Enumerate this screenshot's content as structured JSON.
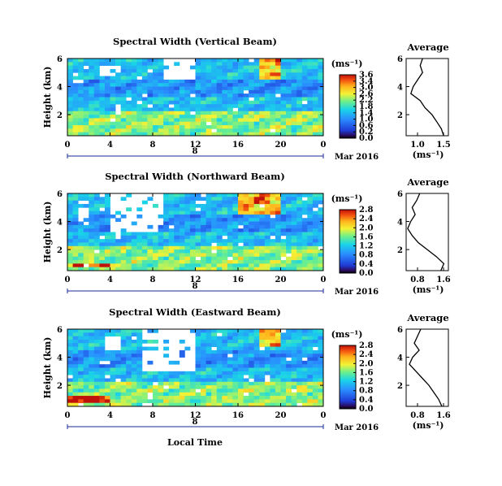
{
  "figure": {
    "xlabel": "Local Time",
    "date_marker": "8",
    "date_label": "Mar 2016"
  },
  "panels": [
    {
      "key": "vertical",
      "title": "Spectral Width (Vertical Beam)",
      "ylabel": "Height (km)",
      "x_ticks": [
        "0",
        "4",
        "8",
        "12",
        "16",
        "20",
        "0"
      ],
      "y_ticks": [
        "6",
        "4",
        "2"
      ],
      "colorbar_unit": "(ms⁻¹)",
      "colorbar_ticks": [
        "3.6",
        "3.4",
        "3.0",
        "2.6",
        "2.2",
        "1.8",
        "1.4",
        "1.0",
        "0.6",
        "0.2",
        "0.0"
      ],
      "avg_title": "Average",
      "avg_xlabel": "(ms⁻¹)",
      "avg_xticks": [
        "1.0",
        "1.5"
      ],
      "avg_yticks": [
        "6",
        "4",
        "2"
      ]
    },
    {
      "key": "northward",
      "title": "Spectral Width (Northward Beam)",
      "ylabel": "Height (km)",
      "x_ticks": [
        "0",
        "4",
        "8",
        "12",
        "16",
        "20",
        "0"
      ],
      "y_ticks": [
        "6",
        "4",
        "2"
      ],
      "colorbar_unit": "(ms⁻¹)",
      "colorbar_ticks": [
        "2.8",
        "2.4",
        "2.0",
        "1.6",
        "1.2",
        "0.8",
        "0.4",
        "0.0"
      ],
      "avg_title": "Average",
      "avg_xlabel": "(ms⁻¹)",
      "avg_xticks": [
        "0.8",
        "1.6"
      ],
      "avg_yticks": [
        "6",
        "4",
        "2"
      ]
    },
    {
      "key": "eastward",
      "title": "Spectral Width (Eastward Beam)",
      "ylabel": "Height (km)",
      "x_ticks": [
        "0",
        "4",
        "8",
        "12",
        "16",
        "20",
        "0"
      ],
      "y_ticks": [
        "6",
        "4",
        "2"
      ],
      "colorbar_unit": "(ms⁻¹)",
      "colorbar_ticks": [
        "2.8",
        "2.4",
        "2.0",
        "1.6",
        "1.2",
        "0.8",
        "0.4",
        "0.0"
      ],
      "avg_title": "Average",
      "avg_xlabel": "(ms⁻¹)",
      "avg_xticks": [
        "0.8",
        "1.6"
      ],
      "avg_yticks": [
        "6",
        "4",
        "2"
      ]
    }
  ],
  "chart_data": [
    {
      "type": "heatmap",
      "title": "Spectral Width (Vertical Beam)",
      "ylabel": "Height (km)",
      "xlabel": "Local Time",
      "xlim": [
        0,
        24
      ],
      "ylim": [
        0.5,
        6
      ],
      "zlim": [
        0.0,
        3.6
      ],
      "zunit": "(ms⁻¹)",
      "colorscale": "jet",
      "missing_regions_hours_km": [
        [
          9,
          12,
          4.5,
          6
        ],
        [
          3,
          5,
          4.7,
          5.6
        ]
      ],
      "enhanced_regions_hours_km": [
        [
          18,
          20,
          4.5,
          6
        ]
      ],
      "average_profile": {
        "xlim": [
          0.7,
          1.6
        ],
        "height_km": [
          0.5,
          1.0,
          1.5,
          2.0,
          2.5,
          3.0,
          3.5,
          4.0,
          4.5,
          5.0,
          5.5,
          6.0
        ],
        "width_ms": [
          1.5,
          1.45,
          1.35,
          1.25,
          1.1,
          1.0,
          0.8,
          0.85,
          0.95,
          1.05,
          1.0,
          1.05
        ]
      }
    },
    {
      "type": "heatmap",
      "title": "Spectral Width (Northward Beam)",
      "ylabel": "Height (km)",
      "xlabel": "Local Time",
      "xlim": [
        0,
        24
      ],
      "ylim": [
        0.5,
        6
      ],
      "zlim": [
        0.0,
        2.8
      ],
      "zunit": "(ms⁻¹)",
      "colorscale": "jet",
      "missing_regions_hours_km": [
        [
          4,
          9,
          3.2,
          6
        ],
        [
          1,
          2,
          4.0,
          5.5
        ]
      ],
      "enhanced_regions_hours_km": [
        [
          16,
          20,
          4.5,
          6
        ],
        [
          0.5,
          4,
          0.8,
          1.1
        ]
      ],
      "average_profile": {
        "xlim": [
          0.4,
          1.8
        ],
        "height_km": [
          0.5,
          1.0,
          1.5,
          2.0,
          2.5,
          3.0,
          3.5,
          4.0,
          4.5,
          5.0,
          5.5,
          6.0
        ],
        "width_ms": [
          1.55,
          1.65,
          1.4,
          1.1,
          0.8,
          0.6,
          0.45,
          0.55,
          0.7,
          0.6,
          0.75,
          0.85
        ]
      }
    },
    {
      "type": "heatmap",
      "title": "Spectral Width (Eastward Beam)",
      "ylabel": "Height (km)",
      "xlabel": "Local Time",
      "xlim": [
        0,
        24
      ],
      "ylim": [
        0.5,
        6
      ],
      "zlim": [
        0.0,
        2.8
      ],
      "zunit": "(ms⁻¹)",
      "colorscale": "jet",
      "missing_regions_hours_km": [
        [
          7,
          12,
          3.0,
          6
        ],
        [
          3.5,
          5,
          4.5,
          5.5
        ]
      ],
      "enhanced_regions_hours_km": [
        [
          18,
          20,
          4.8,
          6
        ],
        [
          0,
          4,
          0.8,
          1.3
        ]
      ],
      "average_profile": {
        "xlim": [
          0.5,
          1.8
        ],
        "height_km": [
          0.5,
          1.0,
          1.5,
          2.0,
          2.5,
          3.0,
          3.5,
          4.0,
          4.5,
          5.0,
          5.5,
          6.0
        ],
        "width_ms": [
          1.6,
          1.5,
          1.35,
          1.2,
          1.0,
          0.8,
          0.6,
          0.7,
          0.9,
          0.75,
          0.85,
          0.95
        ]
      }
    }
  ]
}
